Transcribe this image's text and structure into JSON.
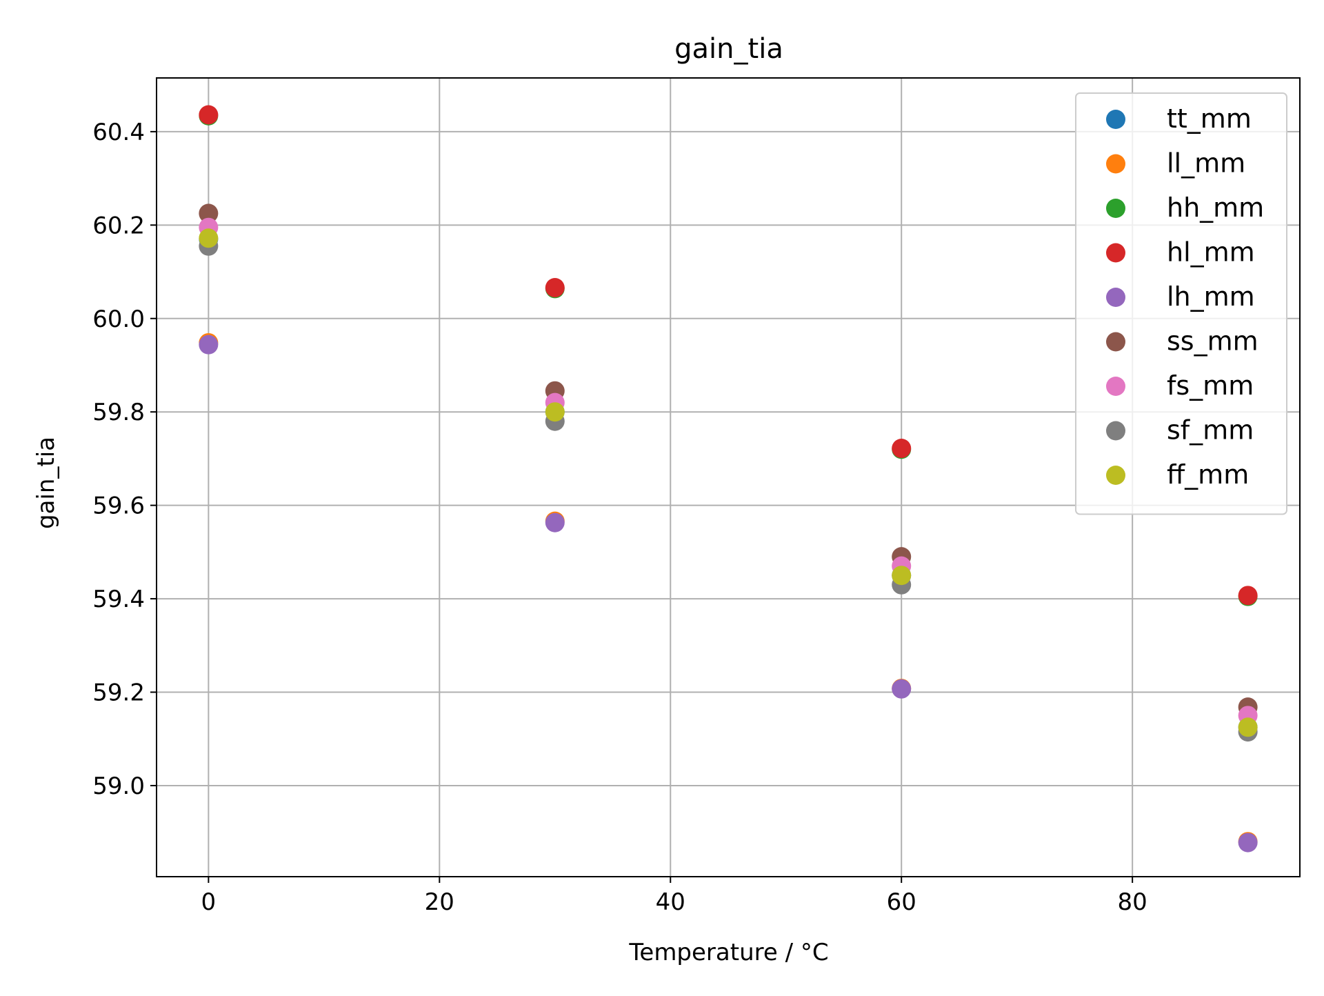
{
  "chart_data": {
    "type": "scatter",
    "title": "gain_tia",
    "xlabel": "Temperature / °C",
    "ylabel": "gain_tia",
    "xlim": [
      -4.5,
      94.5
    ],
    "ylim": [
      58.805,
      60.515
    ],
    "xticks": [
      0,
      20,
      40,
      60,
      80
    ],
    "yticks": [
      59.0,
      59.2,
      59.4,
      59.6,
      59.8,
      60.0,
      60.2,
      60.4
    ],
    "xtick_labels": [
      "0",
      "20",
      "40",
      "60",
      "80"
    ],
    "ytick_labels": [
      "59.0",
      "59.2",
      "59.4",
      "59.6",
      "59.8",
      "60.0",
      "60.2",
      "60.4"
    ],
    "grid": true,
    "legend_position": "top-right",
    "x": [
      0,
      30,
      60,
      90
    ],
    "series": [
      {
        "name": "tt_mm",
        "color": "#1f77b4",
        "values": [
          60.17,
          59.8,
          59.45,
          59.125
        ]
      },
      {
        "name": "ll_mm",
        "color": "#ff7f0e",
        "values": [
          59.948,
          59.566,
          59.208,
          58.88
        ]
      },
      {
        "name": "hh_mm",
        "color": "#2ca02c",
        "values": [
          60.434,
          60.064,
          59.72,
          59.405
        ]
      },
      {
        "name": "hl_mm",
        "color": "#d62728",
        "values": [
          60.436,
          60.066,
          59.722,
          59.407
        ]
      },
      {
        "name": "lh_mm",
        "color": "#9467bd",
        "values": [
          59.944,
          59.563,
          59.207,
          58.878
        ]
      },
      {
        "name": "ss_mm",
        "color": "#8c564b",
        "values": [
          60.225,
          59.845,
          59.49,
          59.168
        ]
      },
      {
        "name": "fs_mm",
        "color": "#e377c2",
        "values": [
          60.195,
          59.82,
          59.47,
          59.15
        ]
      },
      {
        "name": "sf_mm",
        "color": "#7f7f7f",
        "values": [
          60.155,
          59.78,
          59.43,
          59.115
        ]
      },
      {
        "name": "ff_mm",
        "color": "#bcbd22",
        "values": [
          60.172,
          59.8,
          59.45,
          59.125
        ]
      }
    ]
  }
}
